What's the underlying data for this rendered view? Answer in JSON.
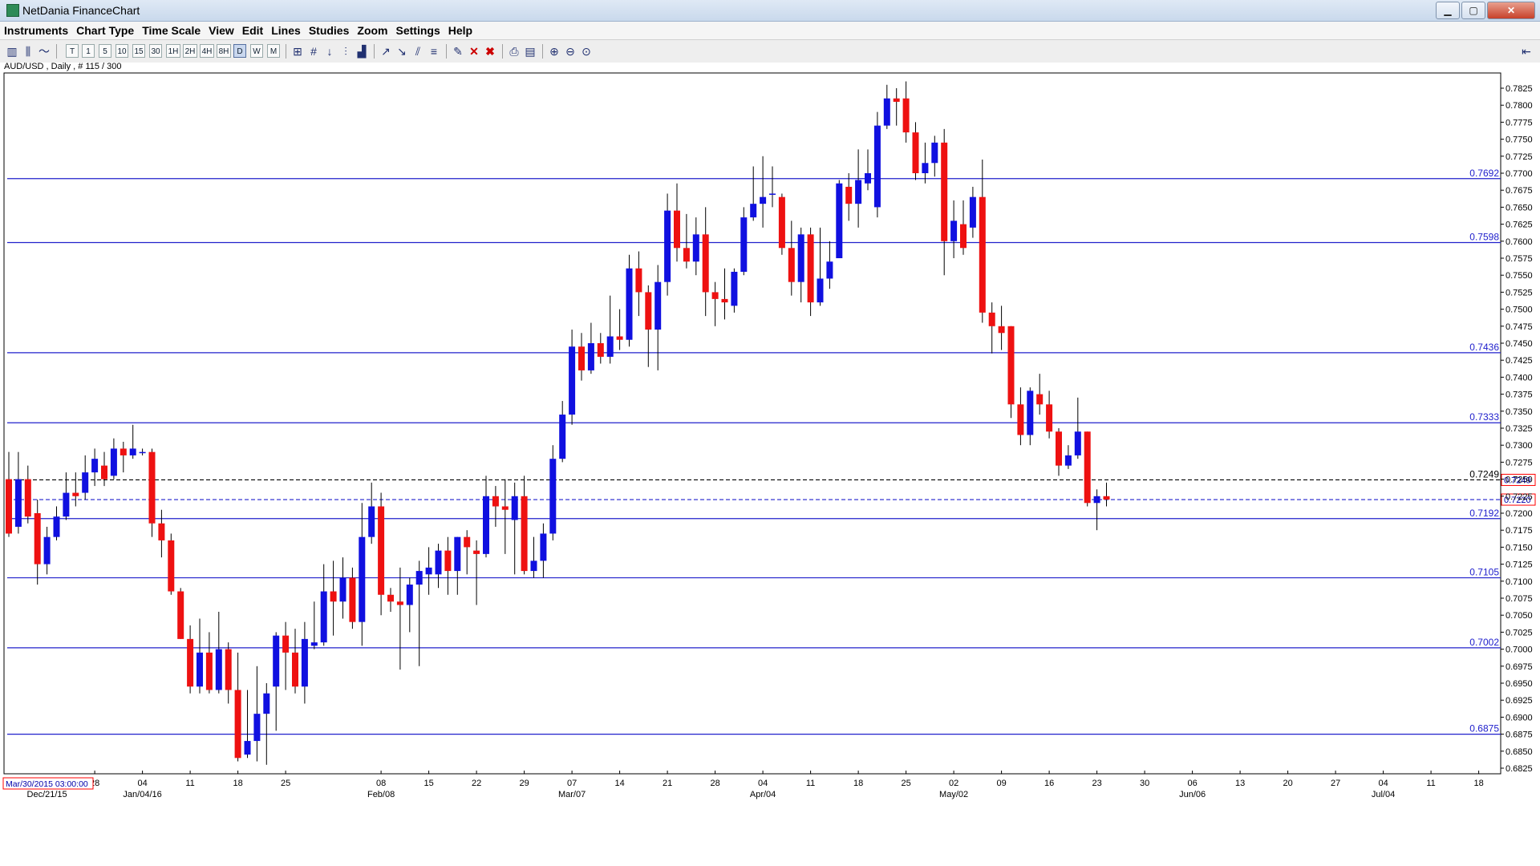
{
  "window": {
    "title": "NetDania FinanceChart",
    "minimize": "▁",
    "maximize": "▢",
    "close": "✕"
  },
  "menu": [
    "Instruments",
    "Chart Type",
    "Time Scale",
    "View",
    "Edit",
    "Lines",
    "Studies",
    "Zoom",
    "Settings",
    "Help"
  ],
  "toolbar": {
    "timeframes": [
      "T",
      "1",
      "5",
      "10",
      "15",
      "30",
      "1H",
      "2H",
      "4H",
      "8H",
      "D",
      "W",
      "M"
    ],
    "selected_timeframe": "D",
    "icons": [
      "candlestick-icon",
      "bar-chart-icon",
      "line-chart-icon",
      "crosshair-icon",
      "grid-icon",
      "arrow-down-icon",
      "volume-icon",
      "histogram-icon",
      "trend-up-icon",
      "trend-down-icon",
      "channel-icon",
      "fibonacci-icon",
      "marker-icon",
      "delete-icon",
      "delete-all-icon",
      "print-icon",
      "print-preview-icon",
      "zoom-in-icon",
      "zoom-out-icon",
      "zoom-reset-icon",
      "collapse-icon"
    ]
  },
  "chart_data": {
    "type": "candlestick",
    "symbol_info": "AUD/USD , Daily , # 115 / 300",
    "cursor_time": "Mar/30/2015 03:00:00",
    "colors": {
      "up": "#1010e0",
      "down": "#ee1111",
      "hline": "#2020cc",
      "axis_text": "#000000"
    },
    "ylim": [
      0.6815,
      0.7845
    ],
    "y_ticks": [
      "0.6825",
      "0.6850",
      "0.6875",
      "0.6900",
      "0.6925",
      "0.6950",
      "0.6975",
      "0.7000",
      "0.7025",
      "0.7050",
      "0.7075",
      "0.7100",
      "0.7125",
      "0.7150",
      "0.7175",
      "0.7200",
      "0.7225",
      "0.7250",
      "0.7275",
      "0.7300",
      "0.7325",
      "0.7350",
      "0.7375",
      "0.7400",
      "0.7425",
      "0.7450",
      "0.7475",
      "0.7500",
      "0.7525",
      "0.7550",
      "0.7575",
      "0.7600",
      "0.7625",
      "0.7650",
      "0.7675",
      "0.7700",
      "0.7725",
      "0.7750",
      "0.7775",
      "0.7800",
      "0.7825"
    ],
    "horizontal_lines": [
      {
        "value": 0.7692,
        "label": "0.7692"
      },
      {
        "value": 0.7598,
        "label": "0.7598"
      },
      {
        "value": 0.7436,
        "label": "0.7436"
      },
      {
        "value": 0.7333,
        "label": "0.7333"
      },
      {
        "value": 0.7192,
        "label": "0.7192"
      },
      {
        "value": 0.7105,
        "label": "0.7105"
      },
      {
        "value": 0.7002,
        "label": "0.7002"
      },
      {
        "value": 0.6875,
        "label": "0.6875"
      }
    ],
    "dashed_lines": [
      {
        "value": 0.7249,
        "label": "0.7249",
        "color": "#000000",
        "boxed_label": "0.7249"
      },
      {
        "value": 0.722,
        "label": "",
        "color": "#2222cc",
        "boxed_label": "0.7220"
      }
    ],
    "x_day_ticks": [
      {
        "day": 9,
        "label": "28"
      },
      {
        "day": 14,
        "label": "04"
      },
      {
        "day": 19,
        "label": "11"
      },
      {
        "day": 24,
        "label": "18"
      },
      {
        "day": 29,
        "label": "25"
      },
      {
        "day": 39,
        "label": "08"
      },
      {
        "day": 44,
        "label": "15"
      },
      {
        "day": 49,
        "label": "22"
      },
      {
        "day": 54,
        "label": "29"
      },
      {
        "day": 59,
        "label": "07"
      },
      {
        "day": 64,
        "label": "14"
      },
      {
        "day": 69,
        "label": "21"
      },
      {
        "day": 74,
        "label": "28"
      },
      {
        "day": 79,
        "label": "04"
      },
      {
        "day": 84,
        "label": "11"
      },
      {
        "day": 89,
        "label": "18"
      },
      {
        "day": 94,
        "label": "25"
      },
      {
        "day": 99,
        "label": "02"
      },
      {
        "day": 104,
        "label": "09"
      },
      {
        "day": 109,
        "label": "16"
      },
      {
        "day": 114,
        "label": "23"
      },
      {
        "day": 119,
        "label": "30"
      },
      {
        "day": 124,
        "label": "06"
      },
      {
        "day": 129,
        "label": "13"
      },
      {
        "day": 134,
        "label": "20"
      },
      {
        "day": 139,
        "label": "27"
      },
      {
        "day": 144,
        "label": "04"
      },
      {
        "day": 149,
        "label": "11"
      },
      {
        "day": 154,
        "label": "18"
      }
    ],
    "x_month_labels": [
      {
        "day": 4,
        "label": "Dec/21/15"
      },
      {
        "day": 14,
        "label": "Jan/04/16"
      },
      {
        "day": 39,
        "label": "Feb/08"
      },
      {
        "day": 59,
        "label": "Mar/07"
      },
      {
        "day": 79,
        "label": "Apr/04"
      },
      {
        "day": 99,
        "label": "May/02"
      },
      {
        "day": 124,
        "label": "Jun/06"
      },
      {
        "day": 144,
        "label": "Jul/04"
      }
    ],
    "candles": [
      {
        "o": 0.725,
        "h": 0.729,
        "l": 0.7165,
        "c": 0.717
      },
      {
        "o": 0.718,
        "h": 0.729,
        "l": 0.717,
        "c": 0.725
      },
      {
        "o": 0.725,
        "h": 0.727,
        "l": 0.7185,
        "c": 0.7195
      },
      {
        "o": 0.72,
        "h": 0.722,
        "l": 0.7095,
        "c": 0.7125
      },
      {
        "o": 0.7125,
        "h": 0.718,
        "l": 0.711,
        "c": 0.7165
      },
      {
        "o": 0.7165,
        "h": 0.721,
        "l": 0.716,
        "c": 0.7195
      },
      {
        "o": 0.7195,
        "h": 0.726,
        "l": 0.719,
        "c": 0.723
      },
      {
        "o": 0.723,
        "h": 0.726,
        "l": 0.721,
        "c": 0.7225
      },
      {
        "o": 0.723,
        "h": 0.7285,
        "l": 0.722,
        "c": 0.726
      },
      {
        "o": 0.726,
        "h": 0.7295,
        "l": 0.724,
        "c": 0.728
      },
      {
        "o": 0.727,
        "h": 0.729,
        "l": 0.724,
        "c": 0.725
      },
      {
        "o": 0.7255,
        "h": 0.731,
        "l": 0.725,
        "c": 0.7295
      },
      {
        "o": 0.7295,
        "h": 0.7305,
        "l": 0.726,
        "c": 0.7285
      },
      {
        "o": 0.7285,
        "h": 0.733,
        "l": 0.728,
        "c": 0.7295
      },
      {
        "o": 0.729,
        "h": 0.7295,
        "l": 0.7285,
        "c": 0.729
      },
      {
        "o": 0.729,
        "h": 0.7295,
        "l": 0.7165,
        "c": 0.7185
      },
      {
        "o": 0.7185,
        "h": 0.7205,
        "l": 0.7135,
        "c": 0.716
      },
      {
        "o": 0.716,
        "h": 0.717,
        "l": 0.708,
        "c": 0.7085
      },
      {
        "o": 0.7085,
        "h": 0.709,
        "l": 0.7015,
        "c": 0.7015
      },
      {
        "o": 0.7015,
        "h": 0.7035,
        "l": 0.6935,
        "c": 0.6945
      },
      {
        "o": 0.6945,
        "h": 0.7045,
        "l": 0.6935,
        "c": 0.6995
      },
      {
        "o": 0.6995,
        "h": 0.7025,
        "l": 0.6935,
        "c": 0.694
      },
      {
        "o": 0.694,
        "h": 0.7055,
        "l": 0.6935,
        "c": 0.7
      },
      {
        "o": 0.7,
        "h": 0.701,
        "l": 0.692,
        "c": 0.694
      },
      {
        "o": 0.694,
        "h": 0.6995,
        "l": 0.6835,
        "c": 0.684
      },
      {
        "o": 0.6845,
        "h": 0.694,
        "l": 0.684,
        "c": 0.6865
      },
      {
        "o": 0.6865,
        "h": 0.6975,
        "l": 0.6835,
        "c": 0.6905
      },
      {
        "o": 0.6905,
        "h": 0.695,
        "l": 0.683,
        "c": 0.6935
      },
      {
        "o": 0.6945,
        "h": 0.7025,
        "l": 0.688,
        "c": 0.702
      },
      {
        "o": 0.702,
        "h": 0.704,
        "l": 0.694,
        "c": 0.6995
      },
      {
        "o": 0.6995,
        "h": 0.703,
        "l": 0.6935,
        "c": 0.6945
      },
      {
        "o": 0.6945,
        "h": 0.704,
        "l": 0.692,
        "c": 0.7015
      },
      {
        "o": 0.7005,
        "h": 0.707,
        "l": 0.7,
        "c": 0.701
      },
      {
        "o": 0.701,
        "h": 0.7125,
        "l": 0.7005,
        "c": 0.7085
      },
      {
        "o": 0.7085,
        "h": 0.713,
        "l": 0.702,
        "c": 0.707
      },
      {
        "o": 0.707,
        "h": 0.7135,
        "l": 0.7045,
        "c": 0.7105
      },
      {
        "o": 0.7105,
        "h": 0.712,
        "l": 0.703,
        "c": 0.704
      },
      {
        "o": 0.704,
        "h": 0.7215,
        "l": 0.7005,
        "c": 0.7165
      },
      {
        "o": 0.7165,
        "h": 0.7245,
        "l": 0.7155,
        "c": 0.721
      },
      {
        "o": 0.721,
        "h": 0.723,
        "l": 0.705,
        "c": 0.708
      },
      {
        "o": 0.708,
        "h": 0.709,
        "l": 0.7055,
        "c": 0.707
      },
      {
        "o": 0.707,
        "h": 0.712,
        "l": 0.697,
        "c": 0.7065
      },
      {
        "o": 0.7065,
        "h": 0.7105,
        "l": 0.7025,
        "c": 0.7095
      },
      {
        "o": 0.7095,
        "h": 0.713,
        "l": 0.6975,
        "c": 0.7115
      },
      {
        "o": 0.711,
        "h": 0.715,
        "l": 0.708,
        "c": 0.712
      },
      {
        "o": 0.711,
        "h": 0.7155,
        "l": 0.709,
        "c": 0.7145
      },
      {
        "o": 0.7145,
        "h": 0.7165,
        "l": 0.708,
        "c": 0.7115
      },
      {
        "o": 0.7115,
        "h": 0.7165,
        "l": 0.708,
        "c": 0.7165
      },
      {
        "o": 0.7165,
        "h": 0.7175,
        "l": 0.711,
        "c": 0.715
      },
      {
        "o": 0.7145,
        "h": 0.716,
        "l": 0.7065,
        "c": 0.714
      },
      {
        "o": 0.714,
        "h": 0.7255,
        "l": 0.7135,
        "c": 0.7225
      },
      {
        "o": 0.7225,
        "h": 0.724,
        "l": 0.718,
        "c": 0.721
      },
      {
        "o": 0.721,
        "h": 0.725,
        "l": 0.714,
        "c": 0.7205
      },
      {
        "o": 0.719,
        "h": 0.7245,
        "l": 0.711,
        "c": 0.7225
      },
      {
        "o": 0.7225,
        "h": 0.7255,
        "l": 0.711,
        "c": 0.7115
      },
      {
        "o": 0.7115,
        "h": 0.7165,
        "l": 0.7105,
        "c": 0.713
      },
      {
        "o": 0.713,
        "h": 0.7185,
        "l": 0.7105,
        "c": 0.717
      },
      {
        "o": 0.717,
        "h": 0.73,
        "l": 0.716,
        "c": 0.728
      },
      {
        "o": 0.728,
        "h": 0.7365,
        "l": 0.7275,
        "c": 0.7345
      },
      {
        "o": 0.7345,
        "h": 0.747,
        "l": 0.733,
        "c": 0.7445
      },
      {
        "o": 0.7445,
        "h": 0.7465,
        "l": 0.7395,
        "c": 0.741
      },
      {
        "o": 0.741,
        "h": 0.748,
        "l": 0.7405,
        "c": 0.745
      },
      {
        "o": 0.745,
        "h": 0.7465,
        "l": 0.742,
        "c": 0.743
      },
      {
        "o": 0.743,
        "h": 0.752,
        "l": 0.742,
        "c": 0.746
      },
      {
        "o": 0.746,
        "h": 0.75,
        "l": 0.744,
        "c": 0.7455
      },
      {
        "o": 0.7455,
        "h": 0.758,
        "l": 0.7445,
        "c": 0.756
      },
      {
        "o": 0.756,
        "h": 0.7585,
        "l": 0.749,
        "c": 0.7525
      },
      {
        "o": 0.7525,
        "h": 0.7535,
        "l": 0.7415,
        "c": 0.747
      },
      {
        "o": 0.747,
        "h": 0.7565,
        "l": 0.741,
        "c": 0.754
      },
      {
        "o": 0.754,
        "h": 0.767,
        "l": 0.752,
        "c": 0.7645
      },
      {
        "o": 0.7645,
        "h": 0.7685,
        "l": 0.757,
        "c": 0.759
      },
      {
        "o": 0.759,
        "h": 0.764,
        "l": 0.756,
        "c": 0.757
      },
      {
        "o": 0.757,
        "h": 0.7635,
        "l": 0.755,
        "c": 0.761
      },
      {
        "o": 0.761,
        "h": 0.765,
        "l": 0.749,
        "c": 0.7525
      },
      {
        "o": 0.7525,
        "h": 0.754,
        "l": 0.7475,
        "c": 0.7515
      },
      {
        "o": 0.7515,
        "h": 0.756,
        "l": 0.7485,
        "c": 0.751
      },
      {
        "o": 0.7505,
        "h": 0.756,
        "l": 0.7495,
        "c": 0.7555
      },
      {
        "o": 0.7555,
        "h": 0.765,
        "l": 0.755,
        "c": 0.7635
      },
      {
        "o": 0.7635,
        "h": 0.771,
        "l": 0.763,
        "c": 0.7655
      },
      {
        "o": 0.7655,
        "h": 0.7725,
        "l": 0.762,
        "c": 0.7665
      },
      {
        "o": 0.767,
        "h": 0.771,
        "l": 0.765,
        "c": 0.767
      },
      {
        "o": 0.7665,
        "h": 0.767,
        "l": 0.758,
        "c": 0.759
      },
      {
        "o": 0.759,
        "h": 0.763,
        "l": 0.752,
        "c": 0.754
      },
      {
        "o": 0.754,
        "h": 0.762,
        "l": 0.751,
        "c": 0.761
      },
      {
        "o": 0.761,
        "h": 0.762,
        "l": 0.749,
        "c": 0.751
      },
      {
        "o": 0.751,
        "h": 0.762,
        "l": 0.7505,
        "c": 0.7545
      },
      {
        "o": 0.7545,
        "h": 0.76,
        "l": 0.753,
        "c": 0.757
      },
      {
        "o": 0.7575,
        "h": 0.769,
        "l": 0.758,
        "c": 0.7685
      },
      {
        "o": 0.768,
        "h": 0.77,
        "l": 0.763,
        "c": 0.7655
      },
      {
        "o": 0.7655,
        "h": 0.7735,
        "l": 0.762,
        "c": 0.769
      },
      {
        "o": 0.7685,
        "h": 0.7735,
        "l": 0.7675,
        "c": 0.77
      },
      {
        "o": 0.765,
        "h": 0.779,
        "l": 0.7635,
        "c": 0.777
      },
      {
        "o": 0.777,
        "h": 0.783,
        "l": 0.7765,
        "c": 0.781
      },
      {
        "o": 0.781,
        "h": 0.7825,
        "l": 0.777,
        "c": 0.7805
      },
      {
        "o": 0.781,
        "h": 0.7835,
        "l": 0.7745,
        "c": 0.776
      },
      {
        "o": 0.776,
        "h": 0.7775,
        "l": 0.769,
        "c": 0.77
      },
      {
        "o": 0.77,
        "h": 0.7745,
        "l": 0.7685,
        "c": 0.7715
      },
      {
        "o": 0.7715,
        "h": 0.7755,
        "l": 0.7695,
        "c": 0.7745
      },
      {
        "o": 0.7745,
        "h": 0.7765,
        "l": 0.755,
        "c": 0.76
      },
      {
        "o": 0.76,
        "h": 0.766,
        "l": 0.7575,
        "c": 0.763
      },
      {
        "o": 0.7625,
        "h": 0.766,
        "l": 0.758,
        "c": 0.759
      },
      {
        "o": 0.762,
        "h": 0.768,
        "l": 0.7605,
        "c": 0.7665
      },
      {
        "o": 0.7665,
        "h": 0.772,
        "l": 0.748,
        "c": 0.7495
      },
      {
        "o": 0.7495,
        "h": 0.751,
        "l": 0.7435,
        "c": 0.7475
      },
      {
        "o": 0.7475,
        "h": 0.7505,
        "l": 0.744,
        "c": 0.7465
      },
      {
        "o": 0.7475,
        "h": 0.7475,
        "l": 0.734,
        "c": 0.736
      },
      {
        "o": 0.736,
        "h": 0.7385,
        "l": 0.73,
        "c": 0.7315
      },
      {
        "o": 0.7315,
        "h": 0.7385,
        "l": 0.73,
        "c": 0.738
      },
      {
        "o": 0.7375,
        "h": 0.7405,
        "l": 0.7345,
        "c": 0.736
      },
      {
        "o": 0.736,
        "h": 0.738,
        "l": 0.731,
        "c": 0.732
      },
      {
        "o": 0.732,
        "h": 0.7325,
        "l": 0.7255,
        "c": 0.727
      },
      {
        "o": 0.727,
        "h": 0.73,
        "l": 0.7265,
        "c": 0.7285
      },
      {
        "o": 0.7285,
        "h": 0.737,
        "l": 0.728,
        "c": 0.732
      },
      {
        "o": 0.732,
        "h": 0.732,
        "l": 0.721,
        "c": 0.7215
      },
      {
        "o": 0.7215,
        "h": 0.7235,
        "l": 0.7175,
        "c": 0.7225
      },
      {
        "o": 0.7225,
        "h": 0.7245,
        "l": 0.721,
        "c": 0.722
      }
    ]
  }
}
